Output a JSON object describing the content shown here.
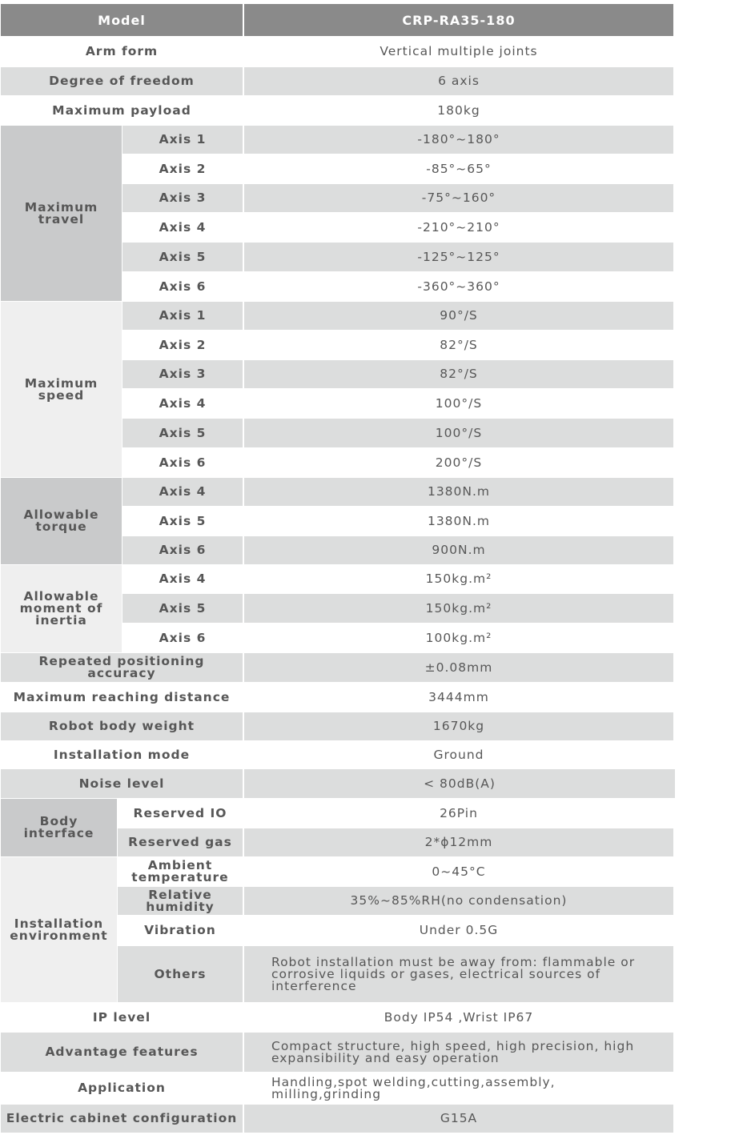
{
  "header": {
    "label": "Model",
    "value": "CRP-RA35-180"
  },
  "colors": {
    "header": "#8a8a8a",
    "row_gray": "#dcdddd",
    "group_dark": "#c9cacb",
    "group_light": "#efefef",
    "text": "#575757"
  },
  "sections": [
    {
      "label": "Arm form",
      "value": "Vertical multiple joints"
    },
    {
      "label": "Degree of freedom",
      "value": "6 axis"
    },
    {
      "label": "Maximum payload",
      "value": "180kg"
    },
    {
      "label": "Maximum travel",
      "items": [
        {
          "label": "Axis 1",
          "value": "-180°~180°"
        },
        {
          "label": "Axis 2",
          "value": "-85°~65°"
        },
        {
          "label": "Axis 3",
          "value": "-75°~160°"
        },
        {
          "label": "Axis 4",
          "value": "-210°~210°"
        },
        {
          "label": "Axis 5",
          "value": "-125°~125°"
        },
        {
          "label": "Axis 6",
          "value": "-360°~360°"
        }
      ]
    },
    {
      "label": "Maximum speed",
      "items": [
        {
          "label": "Axis 1",
          "value": "90°/S"
        },
        {
          "label": "Axis 2",
          "value": "82°/S"
        },
        {
          "label": "Axis 3",
          "value": "82°/S"
        },
        {
          "label": "Axis 4",
          "value": "100°/S"
        },
        {
          "label": "Axis 5",
          "value": "100°/S"
        },
        {
          "label": "Axis 6",
          "value": "200°/S"
        }
      ]
    },
    {
      "label": "Allowable torque",
      "items": [
        {
          "label": "Axis 4",
          "value": "1380N.m"
        },
        {
          "label": "Axis 5",
          "value": "1380N.m"
        },
        {
          "label": "Axis 6",
          "value": "900N.m"
        }
      ]
    },
    {
      "label": "Allowable moment of inertia",
      "items": [
        {
          "label": "Axis 4",
          "value": "150kg.m²"
        },
        {
          "label": "Axis 5",
          "value": "150kg.m²"
        },
        {
          "label": "Axis 6",
          "value": "100kg.m²"
        }
      ]
    },
    {
      "label": "Repeated positioning accuracy",
      "value": "±0.08mm"
    },
    {
      "label": "Maximum reaching distance",
      "value": "3444mm"
    },
    {
      "label": "Robot body weight",
      "value": "1670kg"
    },
    {
      "label": "Installation mode",
      "value": "Ground"
    },
    {
      "label": "Noise level",
      "value": "< 80dB(A)"
    },
    {
      "label": "Body interface",
      "items": [
        {
          "label": "Reserved IO",
          "value": "26Pin"
        },
        {
          "label": "Reserved gas",
          "value": "2*ϕ12mm"
        }
      ]
    },
    {
      "label": "Installation environment",
      "items": [
        {
          "label": "Ambient temperature",
          "value": "0~45°C"
        },
        {
          "label": "Relative humidity",
          "value": "35%~85%RH(no condensation)"
        },
        {
          "label": "Vibration",
          "value": "Under 0.5G"
        },
        {
          "label": "Others",
          "value": "Robot installation must be away from: flammable or corrosive liquids or gases, electrical sources of interference"
        }
      ]
    },
    {
      "label": "IP level",
      "value": "Body IP54 ,Wrist IP67"
    },
    {
      "label": "Advantage features",
      "value": "Compact structure, high speed, high precision, high expansibility and easy operation"
    },
    {
      "label": "Application",
      "value": "Handling,spot welding,cutting,assembly, milling,grinding"
    },
    {
      "label": "Electric cabinet configuration",
      "value": "G15A"
    }
  ]
}
